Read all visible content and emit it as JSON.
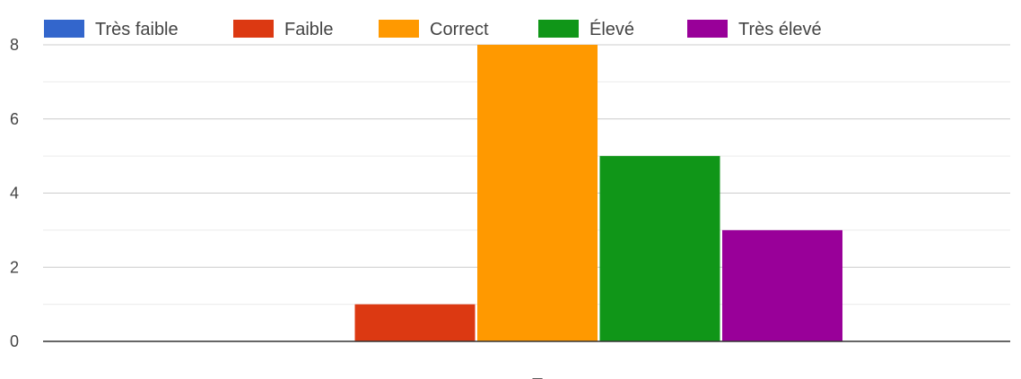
{
  "chart_data": {
    "type": "bar",
    "categories": [
      "–"
    ],
    "series": [
      {
        "name": "Très faible",
        "values": [
          0
        ],
        "color": "#3366cc"
      },
      {
        "name": "Faible",
        "values": [
          1
        ],
        "color": "#dc3912"
      },
      {
        "name": "Correct",
        "values": [
          8
        ],
        "color": "#ff9900"
      },
      {
        "name": "Élevé",
        "values": [
          5
        ],
        "color": "#109618"
      },
      {
        "name": "Très élevé",
        "values": [
          3
        ],
        "color": "#990099"
      }
    ],
    "ylim": [
      0,
      8
    ],
    "yticks": [
      0,
      2,
      4,
      6,
      8
    ],
    "ytick_labels": [
      "0",
      "2",
      "4",
      "6",
      "8"
    ],
    "minor_grid": true,
    "legend_position": "top-left",
    "title": "",
    "xlabel": "",
    "ylabel": ""
  }
}
